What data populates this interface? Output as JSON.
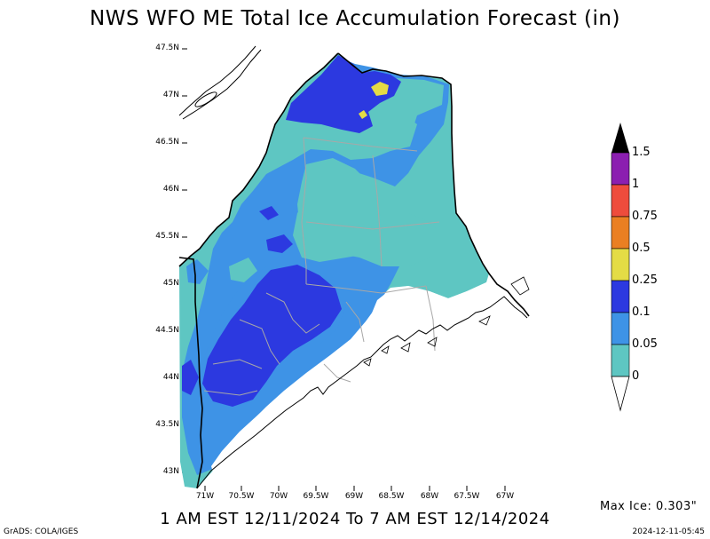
{
  "header": {
    "title": "NWS WFO ME Total Ice Accumulation Forecast (in)",
    "period": "1 AM EST 12/11/2024 To 7 AM EST 12/14/2024"
  },
  "footer": {
    "credit": "GrADS: COLA/IGES",
    "timestamp": "2024-12-11-05:45",
    "max_ice": "Max Ice: 0.303\""
  },
  "axes": {
    "lat_labels": [
      "47.5N",
      "47N",
      "46.5N",
      "46N",
      "45.5N",
      "45N",
      "44.5N",
      "44N",
      "43.5N",
      "43N"
    ],
    "lon_labels": [
      "71W",
      "70.5W",
      "70W",
      "69.5W",
      "69W",
      "68.5W",
      "68W",
      "67.5W",
      "67W"
    ]
  },
  "legend": {
    "labels": [
      "1.5",
      "1",
      "0.75",
      "0.5",
      "0.25",
      "0.1",
      "0.05",
      "0"
    ],
    "colors": [
      "#000000",
      "#8b1fb0",
      "#ee4c3c",
      "#ea7f22",
      "#e4dc45",
      "#2c39e0",
      "#3e93e6",
      "#5ec6c2"
    ]
  },
  "colors": {
    "cat_0": "#5ec6c2",
    "cat_005": "#3e93e6",
    "cat_01": "#2c39e0",
    "cat_025": "#e4dc45"
  }
}
